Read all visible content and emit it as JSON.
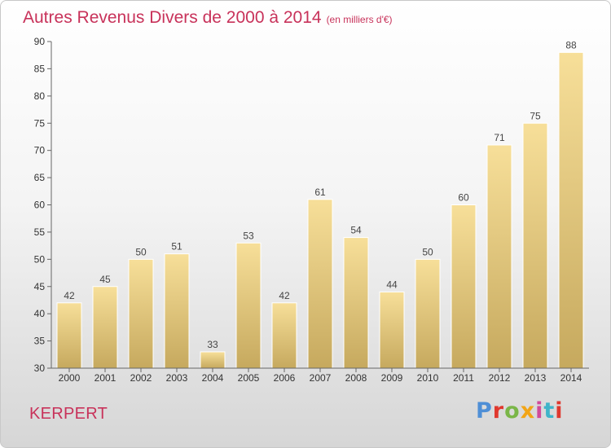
{
  "chart_data": {
    "type": "bar",
    "title": "Autres Revenus Divers de 2000 à 2014",
    "subtitle": "(en milliers d'€)",
    "categories": [
      "2000",
      "2001",
      "2002",
      "2003",
      "2004",
      "2005",
      "2006",
      "2007",
      "2008",
      "2009",
      "2010",
      "2011",
      "2012",
      "2013",
      "2014"
    ],
    "values": [
      42,
      45,
      50,
      51,
      33,
      53,
      42,
      61,
      54,
      44,
      50,
      60,
      71,
      75,
      88
    ],
    "ylim": [
      30,
      90
    ],
    "yticks": [
      30,
      35,
      40,
      45,
      50,
      55,
      60,
      65,
      70,
      75,
      80,
      85,
      90
    ],
    "grid": false,
    "bar_color": "#e6c97a",
    "title_color": "#c8325a"
  },
  "footer": {
    "town": "KERPERT",
    "logo": "Proxiti",
    "logo_colors": [
      "#4f8fd6",
      "#e0382e",
      "#7ab648",
      "#f2a516",
      "#d04a9a",
      "#3fb4c9",
      "#e0382e"
    ]
  }
}
